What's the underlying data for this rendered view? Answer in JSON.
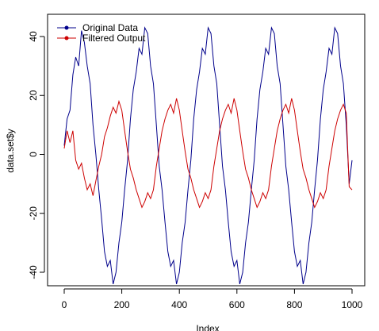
{
  "colors": {
    "original": "#00008b",
    "filtered": "#cd0000"
  },
  "chart_data": {
    "type": "line",
    "title": "",
    "xlabel": "Index",
    "ylabel": "data.set$y",
    "xlim": [
      0,
      1000
    ],
    "ylim": [
      -40,
      40
    ],
    "x_ticks": [
      "0",
      "200",
      "400",
      "600",
      "800",
      "1000"
    ],
    "y_ticks": [
      "-40",
      "-20",
      "0",
      "20",
      "40"
    ],
    "legend_position": "top-left",
    "series": [
      {
        "name": "Original Data",
        "x": [
          0,
          10,
          20,
          30,
          40,
          50,
          60,
          70,
          80,
          90,
          100,
          110,
          120,
          130,
          140,
          150,
          160,
          170,
          180,
          190,
          200,
          210,
          220,
          230,
          240,
          250,
          260,
          270,
          280,
          290,
          300,
          310,
          320,
          330,
          340,
          350,
          360,
          370,
          380,
          390,
          400,
          410,
          420,
          430,
          440,
          450,
          460,
          470,
          480,
          490,
          500,
          510,
          520,
          530,
          540,
          550,
          560,
          570,
          580,
          590,
          600,
          610,
          620,
          630,
          640,
          650,
          660,
          670,
          680,
          690,
          700,
          710,
          720,
          730,
          740,
          750,
          760,
          770,
          780,
          790,
          800,
          810,
          820,
          830,
          840,
          850,
          860,
          870,
          880,
          890,
          900,
          910,
          920,
          930,
          940,
          950,
          960,
          970,
          980,
          990,
          1000
        ],
        "y": [
          3,
          12,
          15,
          27,
          33,
          30,
          42,
          38,
          30,
          24,
          10,
          0,
          -12,
          -22,
          -33,
          -38,
          -36,
          -44,
          -40,
          -30,
          -23,
          -12,
          -2,
          12,
          22,
          28,
          36,
          34,
          43,
          41,
          30,
          24,
          10,
          -4,
          -12,
          -23,
          -33,
          -38,
          -36,
          -44,
          -40,
          -30,
          -23,
          -12,
          -2,
          12,
          22,
          28,
          36,
          34,
          43,
          41,
          30,
          24,
          10,
          -4,
          -12,
          -23,
          -33,
          -38,
          -36,
          -44,
          -40,
          -30,
          -23,
          -12,
          -2,
          12,
          22,
          28,
          36,
          34,
          43,
          41,
          30,
          24,
          10,
          -4,
          -12,
          -23,
          -33,
          -38,
          -36,
          -44,
          -40,
          -30,
          -23,
          -12,
          -2,
          12,
          22,
          28,
          36,
          34,
          43,
          41,
          30,
          24,
          10,
          -10,
          -2
        ]
      },
      {
        "name": "Filtered Output",
        "x": [
          0,
          10,
          20,
          30,
          40,
          50,
          60,
          70,
          80,
          90,
          100,
          110,
          120,
          130,
          140,
          150,
          160,
          170,
          180,
          190,
          200,
          210,
          220,
          230,
          240,
          250,
          260,
          270,
          280,
          290,
          300,
          310,
          320,
          330,
          340,
          350,
          360,
          370,
          380,
          390,
          400,
          410,
          420,
          430,
          440,
          450,
          460,
          470,
          480,
          490,
          500,
          510,
          520,
          530,
          540,
          550,
          560,
          570,
          580,
          590,
          600,
          610,
          620,
          630,
          640,
          650,
          660,
          670,
          680,
          690,
          700,
          710,
          720,
          730,
          740,
          750,
          760,
          770,
          780,
          790,
          800,
          810,
          820,
          830,
          840,
          850,
          860,
          870,
          880,
          890,
          900,
          910,
          920,
          930,
          940,
          950,
          960,
          970,
          980,
          990,
          1000
        ],
        "y": [
          2,
          8,
          4,
          8,
          -2,
          -5,
          -3,
          -8,
          -12,
          -10,
          -14,
          -9,
          -4,
          0,
          6,
          9,
          13,
          16,
          14,
          18,
          15,
          8,
          1,
          -5,
          -8,
          -12,
          -15,
          -18,
          -16,
          -13,
          -15,
          -12,
          -4,
          2,
          8,
          12,
          15,
          17,
          14,
          19,
          15,
          8,
          1,
          -5,
          -8,
          -12,
          -15,
          -18,
          -16,
          -13,
          -15,
          -12,
          -4,
          2,
          8,
          12,
          15,
          17,
          14,
          19,
          15,
          8,
          1,
          -5,
          -8,
          -12,
          -15,
          -18,
          -16,
          -13,
          -15,
          -12,
          -4,
          2,
          8,
          12,
          15,
          17,
          14,
          19,
          15,
          8,
          1,
          -5,
          -8,
          -12,
          -15,
          -18,
          -16,
          -13,
          -15,
          -12,
          -4,
          2,
          8,
          12,
          15,
          17,
          14,
          -11,
          -12
        ]
      }
    ]
  }
}
